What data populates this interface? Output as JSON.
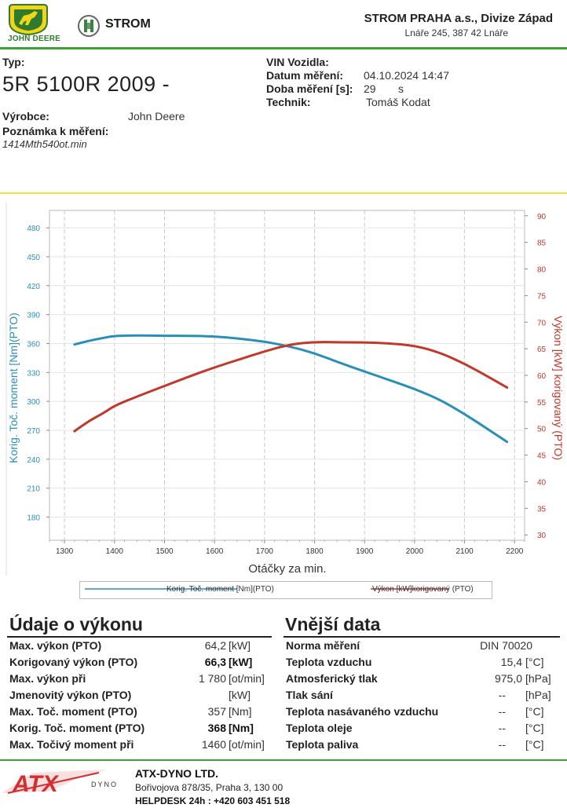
{
  "header": {
    "jd_text": "JOHN DEERE",
    "strom_text": "STROM",
    "company": "STROM PRAHA a.s., Divize Západ",
    "address": "Lnáře 245, 387 42 Lnáře"
  },
  "info": {
    "type_label": "Typ:",
    "model": "5R 5100R 2009 -",
    "maker_label": "Výrobce:",
    "maker": "John Deere",
    "note_label": "Poznámka k měření:",
    "note": "1414Mth540ot.min",
    "vin_label": "VIN Vozidla:",
    "vin": "",
    "date_label": "Datum měření:",
    "date": "04.10.2024 14:47",
    "duration_label": "Doba měření [s]:",
    "duration": "29",
    "duration_unit": "s",
    "tech_label": "Technik:",
    "tech": "Tomáš Kodat"
  },
  "chart_data": {
    "type": "line",
    "xlabel": "Otáčky za min.",
    "ylabel_left": "Korig. Toč. moment [Nm](PTO)",
    "ylabel_right": "Výkon [kW] korigovaný (PTO)",
    "xlim": [
      1270,
      2220
    ],
    "ylim_left": [
      156,
      498
    ],
    "ylim_right": [
      29,
      91
    ],
    "x_ticks": [
      1300,
      1400,
      1500,
      1600,
      1700,
      1800,
      1900,
      2000,
      2100,
      2200
    ],
    "y_left_ticks": [
      180,
      210,
      240,
      270,
      300,
      330,
      360,
      390,
      420,
      450,
      480
    ],
    "y_right_ticks": [
      30,
      35,
      40,
      45,
      50,
      55,
      60,
      65,
      70,
      75,
      80,
      85,
      90
    ],
    "grid": true,
    "legend_position": "bottom",
    "series": [
      {
        "name": "Korig. Toč. moment [Nm](PTO)",
        "axis": "left",
        "color": "#2a8fb8",
        "x": [
          1320,
          1350,
          1380,
          1400,
          1450,
          1500,
          1550,
          1600,
          1650,
          1700,
          1750,
          1800,
          1850,
          1900,
          1950,
          2000,
          2050,
          2100,
          2150,
          2185
        ],
        "y": [
          359,
          363,
          366,
          368,
          368.5,
          368,
          368,
          367.5,
          365,
          362,
          357,
          350,
          340,
          331,
          322,
          313,
          302,
          287,
          270,
          258
        ]
      },
      {
        "name": "Výkon [kW]korigovaný (PTO)",
        "axis": "right",
        "color": "#c0392b",
        "x": [
          1320,
          1350,
          1380,
          1400,
          1450,
          1500,
          1550,
          1600,
          1650,
          1700,
          1750,
          1800,
          1850,
          1900,
          1950,
          2000,
          2050,
          2100,
          2150,
          2185
        ],
        "y": [
          49.5,
          51.5,
          53,
          54.3,
          56.2,
          58,
          59.8,
          61.5,
          63,
          64.5,
          65.8,
          66.3,
          66.2,
          66.2,
          66,
          65.6,
          64.3,
          62.2,
          59.6,
          57.7
        ]
      }
    ]
  },
  "perf": {
    "title": "Údaje o výkonu",
    "rows": [
      {
        "label": "Max. výkon (PTO)",
        "value": "64,2",
        "unit": "[kW]",
        "bold": false
      },
      {
        "label": "Korigovaný výkon (PTO)",
        "value": "66,3",
        "unit": "[kW]",
        "bold": true
      },
      {
        "label": "Max. výkon při",
        "value": "1 780",
        "unit": "[ot/min]",
        "bold": false
      },
      {
        "label": "Jmenovitý výkon (PTO)",
        "value": "",
        "unit": "[kW]",
        "bold": false
      },
      {
        "label": "Max. Toč. moment (PTO)",
        "value": "357",
        "unit": "[Nm]",
        "bold": false
      },
      {
        "label": "Korig. Toč. moment (PTO)",
        "value": "368",
        "unit": "[Nm]",
        "bold": true
      },
      {
        "label": "Max. Točivý moment při",
        "value": "1460",
        "unit": "[ot/min]",
        "bold": false
      }
    ]
  },
  "ext": {
    "title": "Vnější data",
    "rows": [
      {
        "label": "Norma měření",
        "value": "DIN 70020",
        "unit": ""
      },
      {
        "label": "Teplota vzduchu",
        "value": "15,4",
        "unit": "[°C]"
      },
      {
        "label": "Atmosferický tlak",
        "value": "975,0",
        "unit": "[hPa]"
      },
      {
        "label": "Tlak sání",
        "value": "--",
        "unit": "[hPa]"
      },
      {
        "label": "Teplota nasávaného vzduchu",
        "value": "--",
        "unit": "[°C]"
      },
      {
        "label": "Teplota oleje",
        "value": "--",
        "unit": "[°C]"
      },
      {
        "label": "Teplota paliva",
        "value": "--",
        "unit": "[°C]"
      }
    ]
  },
  "footer": {
    "logo_text": "ATX",
    "logo_sub": "DYNO",
    "name": "ATX-DYNO LTD.",
    "address": "Bořivojova 878/35, Praha 3, 130 00",
    "helpdesk": "HELPDESK 24h : +420 603 451 518"
  }
}
